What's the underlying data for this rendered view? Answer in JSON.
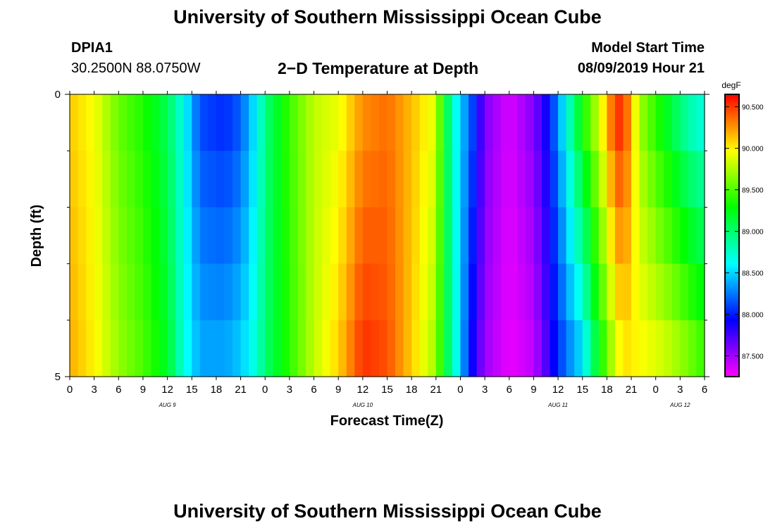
{
  "header": {
    "title": "University of Southern Mississippi Ocean Cube",
    "station": "DPIA1",
    "coords": "30.2500N 88.0750W",
    "plot_title": "2−D Temperature at Depth",
    "model_label": "Model Start Time",
    "model_time": "08/09/2019 Hour 21"
  },
  "footer": {
    "title": "University of Southern Mississippi Ocean Cube"
  },
  "chart_data": {
    "type": "heatmap",
    "title": "2−D Temperature at Depth",
    "xlabel": "Forecast Time(Z)",
    "ylabel": "Depth (ft)",
    "x_hours": [
      0,
      3,
      6,
      9,
      12,
      15,
      18,
      21,
      24,
      27,
      30,
      33,
      36,
      39,
      42,
      45,
      48,
      51,
      54,
      57,
      60,
      63,
      66,
      69,
      72,
      75,
      78
    ],
    "x_tick_labels": [
      "0",
      "3",
      "6",
      "9",
      "12",
      "15",
      "18",
      "21",
      "0",
      "3",
      "6",
      "9",
      "12",
      "15",
      "18",
      "21",
      "0",
      "3",
      "6",
      "9",
      "12",
      "15",
      "18",
      "21",
      "0",
      "3",
      "6"
    ],
    "date_labels": [
      {
        "label": "AUG 9",
        "hour": 12
      },
      {
        "label": "AUG 10",
        "hour": 36
      },
      {
        "label": "AUG 11",
        "hour": 60
      },
      {
        "label": "AUG 12",
        "hour": 75
      }
    ],
    "y_range": [
      0,
      5
    ],
    "y_tick_labels": [
      {
        "value": 0,
        "label": "0"
      },
      {
        "value": 5,
        "label": "5"
      }
    ],
    "depth_rows": [
      0,
      1,
      2,
      3,
      4,
      5
    ],
    "colorbar": {
      "unit": "degF",
      "min": 87.25,
      "max": 90.65,
      "tick_values": [
        87.5,
        88.0,
        88.5,
        89.0,
        89.5,
        90.0,
        90.5
      ],
      "tick_labels": [
        "87.500",
        "88.000",
        "88.500",
        "89.000",
        "89.500",
        "90.000",
        "90.500"
      ]
    },
    "surface_temps": [
      {
        "hour": 0,
        "value": 90.1
      },
      {
        "hour": 3,
        "value": 89.95
      },
      {
        "hour": 6,
        "value": 89.55
      },
      {
        "hour": 9,
        "value": 89.35
      },
      {
        "hour": 12,
        "value": 89.05
      },
      {
        "hour": 14,
        "value": 88.65
      },
      {
        "hour": 16,
        "value": 88.1
      },
      {
        "hour": 19,
        "value": 88.0
      },
      {
        "hour": 21,
        "value": 88.15
      },
      {
        "hour": 23,
        "value": 88.6
      },
      {
        "hour": 24,
        "value": 88.95
      },
      {
        "hour": 27,
        "value": 89.45
      },
      {
        "hour": 30,
        "value": 89.8
      },
      {
        "hour": 33,
        "value": 89.9
      },
      {
        "hour": 36,
        "value": 90.25
      },
      {
        "hour": 39,
        "value": 90.35
      },
      {
        "hour": 42,
        "value": 90.15
      },
      {
        "hour": 45,
        "value": 89.9
      },
      {
        "hour": 46,
        "value": 89.2
      },
      {
        "hour": 48,
        "value": 88.45
      },
      {
        "hour": 49,
        "value": 88.3
      },
      {
        "hour": 51,
        "value": 87.6
      },
      {
        "hour": 54,
        "value": 87.35
      },
      {
        "hour": 57,
        "value": 87.6
      },
      {
        "hour": 59,
        "value": 88.0
      },
      {
        "hour": 61,
        "value": 88.7
      },
      {
        "hour": 63,
        "value": 89.4
      },
      {
        "hour": 65,
        "value": 89.9
      },
      {
        "hour": 67,
        "value": 90.55
      },
      {
        "hour": 68,
        "value": 90.6
      },
      {
        "hour": 70,
        "value": 89.7
      },
      {
        "hour": 72,
        "value": 89.35
      },
      {
        "hour": 74,
        "value": 89.05
      },
      {
        "hour": 76,
        "value": 88.75
      },
      {
        "hour": 78,
        "value": 88.6
      }
    ],
    "bottom_temps": [
      {
        "hour": 0,
        "value": 90.2
      },
      {
        "hour": 3,
        "value": 90.0
      },
      {
        "hour": 6,
        "value": 89.7
      },
      {
        "hour": 9,
        "value": 89.5
      },
      {
        "hour": 12,
        "value": 89.2
      },
      {
        "hour": 14,
        "value": 88.7
      },
      {
        "hour": 16,
        "value": 88.4
      },
      {
        "hour": 19,
        "value": 88.4
      },
      {
        "hour": 21,
        "value": 88.5
      },
      {
        "hour": 23,
        "value": 88.75
      },
      {
        "hour": 24,
        "value": 89.0
      },
      {
        "hour": 27,
        "value": 89.4
      },
      {
        "hour": 30,
        "value": 89.8
      },
      {
        "hour": 33,
        "value": 90.1
      },
      {
        "hour": 36,
        "value": 90.55
      },
      {
        "hour": 39,
        "value": 90.45
      },
      {
        "hour": 42,
        "value": 90.1
      },
      {
        "hour": 45,
        "value": 89.7
      },
      {
        "hour": 46,
        "value": 89.2
      },
      {
        "hour": 48,
        "value": 88.5
      },
      {
        "hour": 49,
        "value": 88.0
      },
      {
        "hour": 51,
        "value": 87.5
      },
      {
        "hour": 54,
        "value": 87.3
      },
      {
        "hour": 57,
        "value": 87.4
      },
      {
        "hour": 59,
        "value": 87.8
      },
      {
        "hour": 61,
        "value": 88.2
      },
      {
        "hour": 63,
        "value": 88.45
      },
      {
        "hour": 65,
        "value": 89.2
      },
      {
        "hour": 67,
        "value": 89.8
      },
      {
        "hour": 68,
        "value": 90.0
      },
      {
        "hour": 70,
        "value": 90.0
      },
      {
        "hour": 72,
        "value": 89.95
      },
      {
        "hour": 74,
        "value": 89.85
      },
      {
        "hour": 76,
        "value": 89.7
      },
      {
        "hour": 78,
        "value": 89.5
      }
    ]
  }
}
